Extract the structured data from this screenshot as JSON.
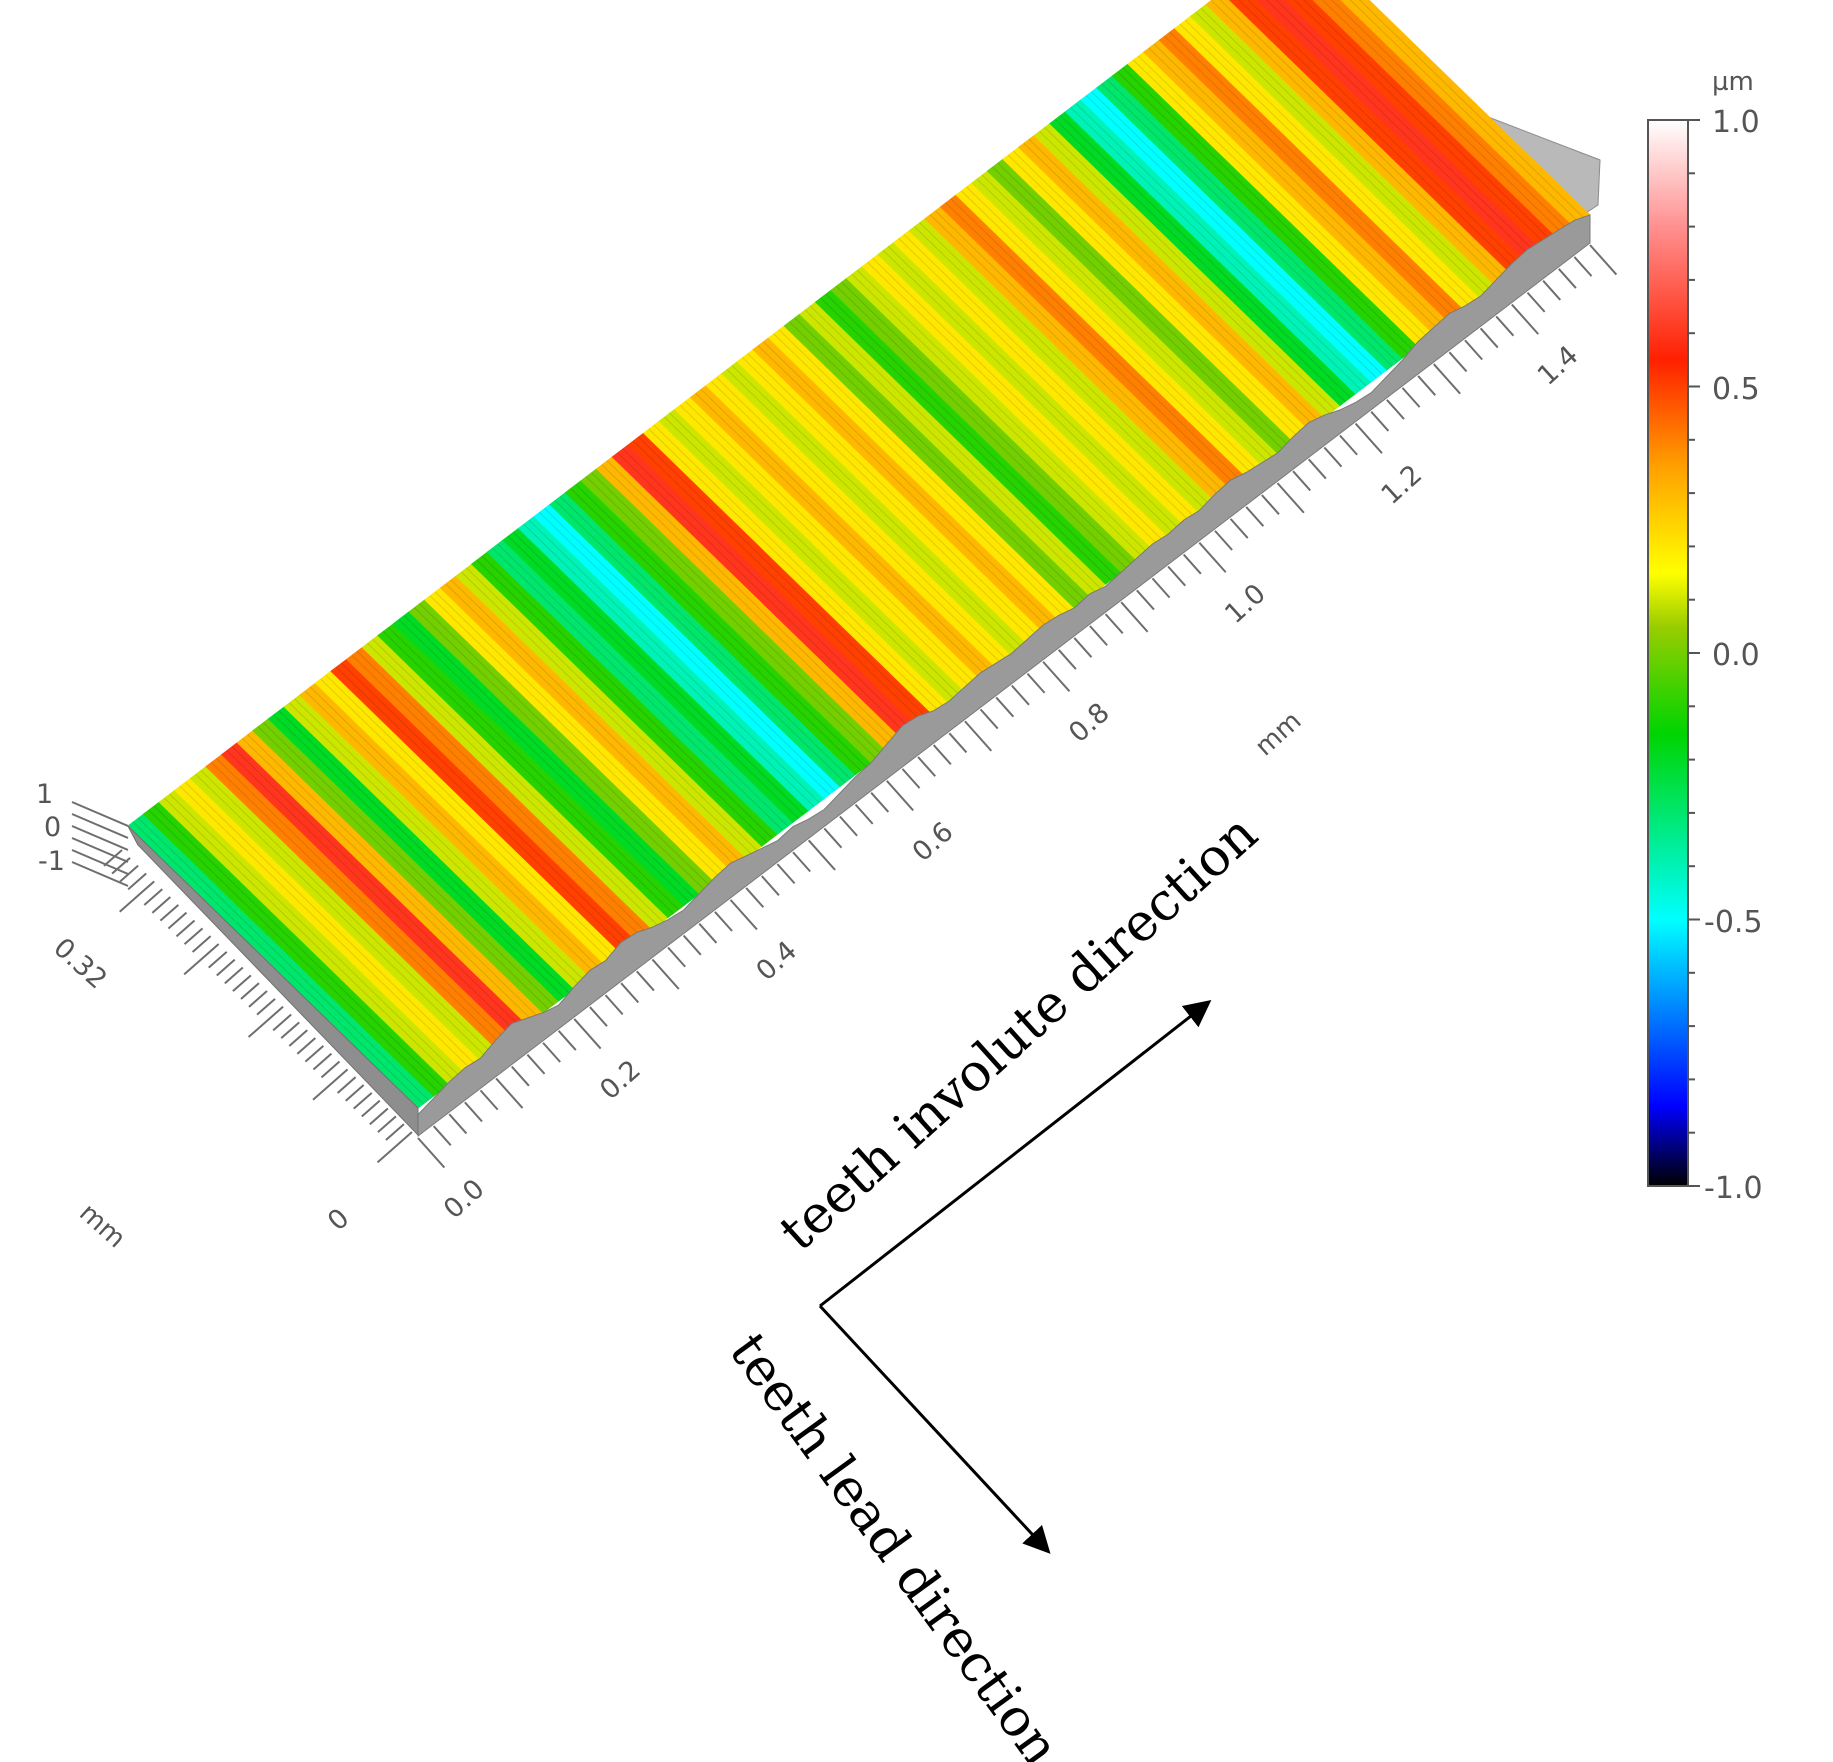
{
  "chart_data": {
    "type": "heatmap",
    "title": "",
    "x_axis": {
      "unit": "mm",
      "tick_labels": [
        "0.0",
        "0.2",
        "0.4",
        "0.6",
        "0.8",
        "1.0",
        "1.2",
        "1.4"
      ],
      "tick_values": [
        0.0,
        0.2,
        0.4,
        0.6,
        0.8,
        1.0,
        1.2,
        1.4
      ],
      "range": [
        0.0,
        1.5
      ]
    },
    "y_axis": {
      "unit": "mm",
      "tick_labels": [
        "0",
        "0.32"
      ],
      "tick_values": [
        0,
        0.32
      ],
      "range": [
        0,
        0.36
      ]
    },
    "z_axis": {
      "tick_labels": [
        "1",
        "0",
        "-1"
      ],
      "tick_values": [
        1,
        0,
        -1
      ]
    },
    "colorbar": {
      "unit": "µm",
      "range": [
        -1.0,
        1.0
      ],
      "tick_labels": [
        "1.0",
        "0.5",
        "0.0",
        "-0.5",
        "-1.0"
      ],
      "tick_values": [
        1.0,
        0.5,
        0.0,
        -0.5,
        -1.0
      ],
      "colormap": [
        {
          "value": -1.0,
          "color": "#000000"
        },
        {
          "value": -0.85,
          "color": "#0000ff"
        },
        {
          "value": -0.5,
          "color": "#00ffff"
        },
        {
          "value": -0.15,
          "color": "#00d400"
        },
        {
          "value": 0.05,
          "color": "#9acd00"
        },
        {
          "value": 0.15,
          "color": "#ffff00"
        },
        {
          "value": 0.35,
          "color": "#ffa000"
        },
        {
          "value": 0.55,
          "color": "#ff2000"
        },
        {
          "value": 0.8,
          "color": "#ff9090"
        },
        {
          "value": 1.0,
          "color": "#ffffff"
        }
      ]
    },
    "surface_profile_x_mm": [
      0.0,
      0.02,
      0.04,
      0.06,
      0.08,
      0.1,
      0.12,
      0.14,
      0.16,
      0.18,
      0.2,
      0.22,
      0.24,
      0.26,
      0.28,
      0.3,
      0.32,
      0.34,
      0.36,
      0.38,
      0.4,
      0.42,
      0.44,
      0.46,
      0.48,
      0.5,
      0.52,
      0.54,
      0.56,
      0.58,
      0.6,
      0.62,
      0.64,
      0.66,
      0.68,
      0.7,
      0.72,
      0.74,
      0.76,
      0.78,
      0.8,
      0.82,
      0.84,
      0.86,
      0.88,
      0.9,
      0.92,
      0.94,
      0.96,
      0.98,
      1.0,
      1.02,
      1.04,
      1.06,
      1.08,
      1.1,
      1.12,
      1.14,
      1.16,
      1.18,
      1.2,
      1.22,
      1.24,
      1.26,
      1.28,
      1.3,
      1.32,
      1.34,
      1.36,
      1.38,
      1.4,
      1.42,
      1.44,
      1.46,
      1.48
    ],
    "surface_profile_height_um": [
      -0.3,
      -0.1,
      0.1,
      0.2,
      0.1,
      0.4,
      0.6,
      0.3,
      0.0,
      -0.2,
      0.1,
      0.3,
      0.2,
      0.5,
      0.4,
      0.1,
      -0.1,
      -0.2,
      0.0,
      0.2,
      0.3,
      0.1,
      -0.1,
      -0.3,
      -0.2,
      -0.4,
      -0.5,
      -0.3,
      -0.1,
      0.0,
      0.3,
      0.6,
      0.5,
      0.2,
      0.1,
      0.2,
      0.3,
      0.2,
      0.1,
      0.2,
      0.3,
      0.2,
      0.0,
      0.1,
      -0.1,
      0.0,
      0.1,
      0.2,
      0.1,
      0.2,
      0.1,
      0.3,
      0.4,
      0.2,
      0.1,
      0.0,
      0.2,
      0.3,
      0.1,
      -0.2,
      -0.4,
      -0.5,
      -0.3,
      -0.1,
      0.2,
      0.3,
      0.4,
      0.2,
      0.1,
      0.3,
      0.5,
      0.6,
      0.5,
      0.4,
      0.3
    ]
  },
  "annotations": {
    "involute_direction": "teeth involute direction",
    "lead_direction": "teeth lead direction"
  }
}
